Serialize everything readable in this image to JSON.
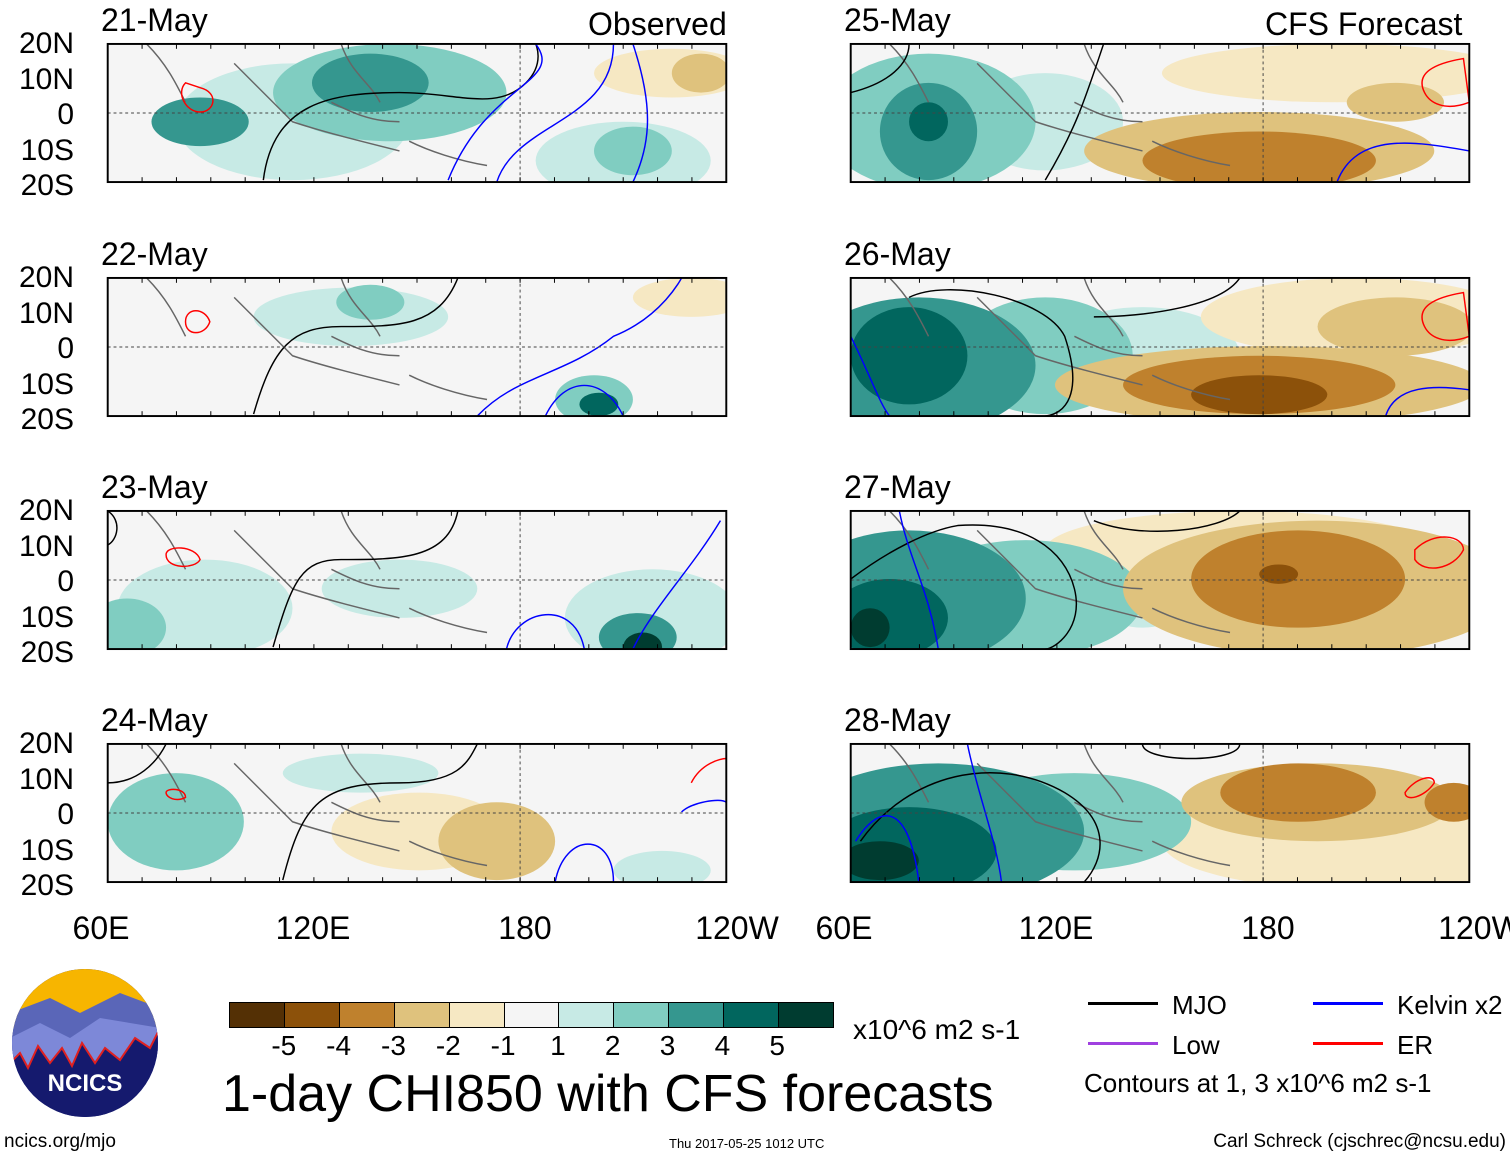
{
  "chart_data": {
    "type": "heatmap",
    "title": "1-day CHI850 with CFS forecasts",
    "units": "x10^6 m2 s-1",
    "columns": [
      {
        "header": "Observed",
        "panels": [
          "21-May",
          "22-May",
          "23-May",
          "24-May"
        ]
      },
      {
        "header": "CFS Forecast",
        "panels": [
          "25-May",
          "26-May",
          "27-May",
          "28-May"
        ]
      }
    ],
    "lat_ticks": [
      "20N",
      "10N",
      "0",
      "10S",
      "20S"
    ],
    "lon_ticks": [
      "60E",
      "120E",
      "180",
      "120W"
    ],
    "ylim": [
      -20,
      20
    ],
    "xlim_degE": [
      60,
      240
    ],
    "colorbar": {
      "ticks": [
        "-5",
        "-4",
        "-3",
        "-2",
        "-1",
        "1",
        "2",
        "3",
        "4",
        "5"
      ],
      "colors": [
        "#543005",
        "#8c510a",
        "#bf812d",
        "#dfc27d",
        "#f6e8c3",
        "#f5f5f5",
        "#c7eae5",
        "#80cdc1",
        "#35978f",
        "#01665e",
        "#003c30"
      ]
    },
    "legend": [
      {
        "label": "MJO",
        "color": "#000000"
      },
      {
        "label": "Kelvin x2",
        "color": "#0000ff"
      },
      {
        "label": "Low",
        "color": "#a040e0"
      },
      {
        "label": "ER",
        "color": "#ff0000"
      }
    ],
    "contour_note": "Contours at 1, 3 x10^6 m2 s-1"
  },
  "footer": {
    "site": "ncics.org/mjo",
    "timestamp": "Thu 2017-05-25 1012 UTC",
    "author": "Carl Schreck (cjschrec@ncsu.edu)",
    "logo_text": "NCICS"
  }
}
